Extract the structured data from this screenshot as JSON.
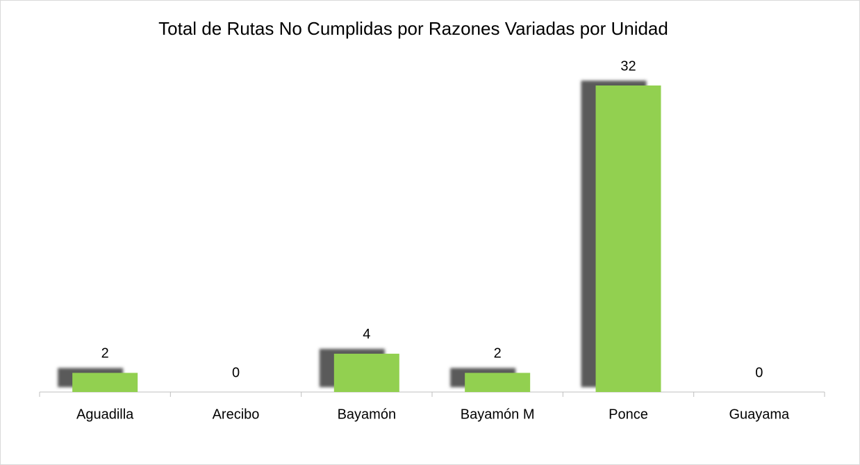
{
  "chart_data": {
    "type": "bar",
    "title": "Total de Rutas No Cumplidas por Razones Variadas por Unidad",
    "categories": [
      "Aguadilla",
      "Arecibo",
      "Bayamón",
      "Bayamón M",
      "Ponce",
      "Guayama"
    ],
    "values": [
      2,
      0,
      4,
      2,
      32,
      0
    ],
    "color": "#92d050",
    "ylim": [
      0,
      32
    ]
  }
}
